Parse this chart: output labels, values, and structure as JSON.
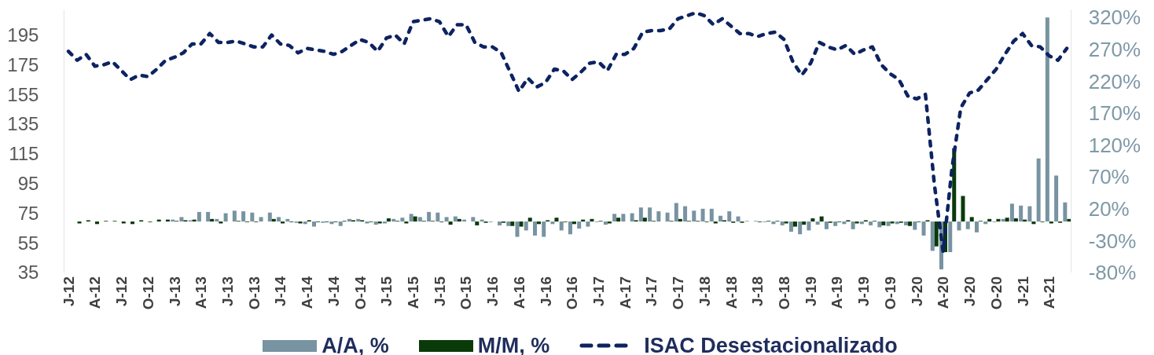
{
  "chart_data": {
    "type": "bar",
    "categories": [
      "J-12",
      null,
      null,
      "A-12",
      null,
      null,
      "J-12",
      null,
      null,
      "O-12",
      null,
      null,
      "J-13",
      null,
      null,
      "A-13",
      null,
      null,
      "J-13",
      null,
      null,
      "O-13",
      null,
      null,
      "J-14",
      null,
      null,
      "A-14",
      null,
      null,
      "J-14",
      null,
      null,
      "O-14",
      null,
      null,
      "J-15",
      null,
      null,
      "A-15",
      null,
      null,
      "J-15",
      null,
      null,
      "O-15",
      null,
      null,
      "J-16",
      null,
      null,
      "A-16",
      null,
      null,
      "J-16",
      null,
      null,
      "O-16",
      null,
      null,
      "J-17",
      null,
      null,
      "A-17",
      null,
      null,
      "J-17",
      null,
      null,
      "O-17",
      null,
      null,
      "J-18",
      null,
      null,
      "A-18",
      null,
      null,
      "J-18",
      null,
      null,
      "O-18",
      null,
      null,
      "J-19",
      null,
      null,
      "A-19",
      null,
      null,
      "J-19",
      null,
      null,
      "O-19",
      null,
      null,
      "J-20",
      null,
      null,
      "A-20",
      null,
      null,
      "J-20",
      null,
      null,
      "O-20",
      null,
      null,
      "J-21",
      null,
      null,
      "A-21",
      null,
      null
    ],
    "series": [
      {
        "name": "A/A, %",
        "axis": "y2",
        "color": "#7893a1",
        "values": [
          null,
          null,
          null,
          null,
          null,
          null,
          null,
          null,
          null,
          null,
          null,
          null,
          3,
          7,
          2,
          15,
          15,
          4,
          13,
          17,
          16,
          14,
          7,
          14,
          7,
          4,
          -2,
          -4,
          -8,
          -2,
          -4,
          -7,
          4,
          4,
          -3,
          -5,
          -3,
          4,
          6,
          12,
          7,
          15,
          14,
          7,
          8,
          3,
          7,
          3,
          -1,
          -6,
          -7,
          -24,
          -14,
          -22,
          -24,
          -4,
          -14,
          -20,
          -11,
          -8,
          -1,
          -5,
          12,
          12,
          13,
          22,
          22,
          16,
          14,
          29,
          24,
          17,
          20,
          20,
          9,
          16,
          8,
          1,
          1,
          -1,
          -4,
          -6,
          -16,
          -20,
          -14,
          -5,
          -12,
          -7,
          -4,
          -12,
          -4,
          -6,
          -9,
          -7,
          -4,
          -6,
          -13,
          -22,
          -46,
          -75,
          -48,
          -14,
          -12,
          -17,
          -4,
          -1,
          4,
          28,
          25,
          24,
          99,
          320,
          72,
          30
        ]
      },
      {
        "name": "M/M, %",
        "axis": "y2",
        "color": "#0a3a0a",
        "values": [
          null,
          -3,
          2,
          -4,
          1,
          1,
          -3,
          -4,
          2,
          -1,
          3,
          3,
          1,
          2,
          3,
          0,
          4,
          -3,
          0,
          1,
          -1,
          -1,
          0,
          4,
          -3,
          -1,
          -3,
          2,
          -1,
          -1,
          -1,
          1,
          2,
          2,
          -1,
          -3,
          5,
          1,
          -3,
          8,
          1,
          1,
          -1,
          -5,
          4,
          0,
          -6,
          -2,
          0,
          -2,
          -7,
          -8,
          6,
          -4,
          2,
          6,
          -1,
          -4,
          3,
          4,
          1,
          -3,
          6,
          0,
          2,
          6,
          1,
          0,
          1,
          4,
          1,
          1,
          -1,
          -3,
          2,
          -2,
          -2,
          0,
          -1,
          1,
          1,
          -3,
          -8,
          -5,
          5,
          8,
          -2,
          -1,
          2,
          -3,
          2,
          1,
          -6,
          -3,
          -2,
          -7,
          -1,
          2,
          -39,
          -48,
          115,
          40,
          7,
          1,
          4,
          4,
          6,
          5,
          3,
          -4,
          -1,
          -3,
          -2,
          4
        ]
      },
      {
        "name": "ISAC Desestacionalizado",
        "type": "line",
        "color": "#0d2361",
        "line_style": "dashed",
        "values": [
          184,
          178,
          182,
          174,
          175,
          177,
          171,
          165,
          168,
          167,
          172,
          178,
          180,
          183,
          189,
          189,
          196,
          190,
          190,
          191,
          189,
          187,
          187,
          195,
          189,
          188,
          183,
          186,
          185,
          184,
          182,
          184,
          188,
          192,
          190,
          184,
          193,
          195,
          189,
          204,
          205,
          206,
          204,
          194,
          202,
          202,
          190,
          187,
          187,
          183,
          170,
          157,
          166,
          160,
          163,
          172,
          171,
          165,
          170,
          176,
          177,
          171,
          182,
          182,
          186,
          197,
          198,
          198,
          199,
          206,
          208,
          210,
          208,
          202,
          206,
          201,
          196,
          196,
          194,
          196,
          197,
          192,
          177,
          168,
          176,
          190,
          187,
          185,
          188,
          182,
          185,
          187,
          175,
          169,
          165,
          154,
          152,
          155,
          95,
          49,
          105,
          146,
          156,
          158,
          165,
          172,
          182,
          191,
          196,
          188,
          187,
          181,
          178,
          186
        ]
      }
    ],
    "ylim": [
      35,
      212
    ],
    "yticks": [
      35,
      55,
      75,
      95,
      115,
      135,
      155,
      175,
      195
    ],
    "y2lim": [
      -80,
      332
    ],
    "y2ticks": [
      {
        "value": -80,
        "label": "-80%"
      },
      {
        "value": -30,
        "label": "-30%"
      },
      {
        "value": 20,
        "label": "20%"
      },
      {
        "value": 70,
        "label": "70%"
      },
      {
        "value": 120,
        "label": "120%"
      },
      {
        "value": 170,
        "label": "170%"
      },
      {
        "value": 220,
        "label": "220%"
      },
      {
        "value": 270,
        "label": "270%"
      },
      {
        "value": 320,
        "label": "320%"
      }
    ],
    "legend": "bottom"
  }
}
